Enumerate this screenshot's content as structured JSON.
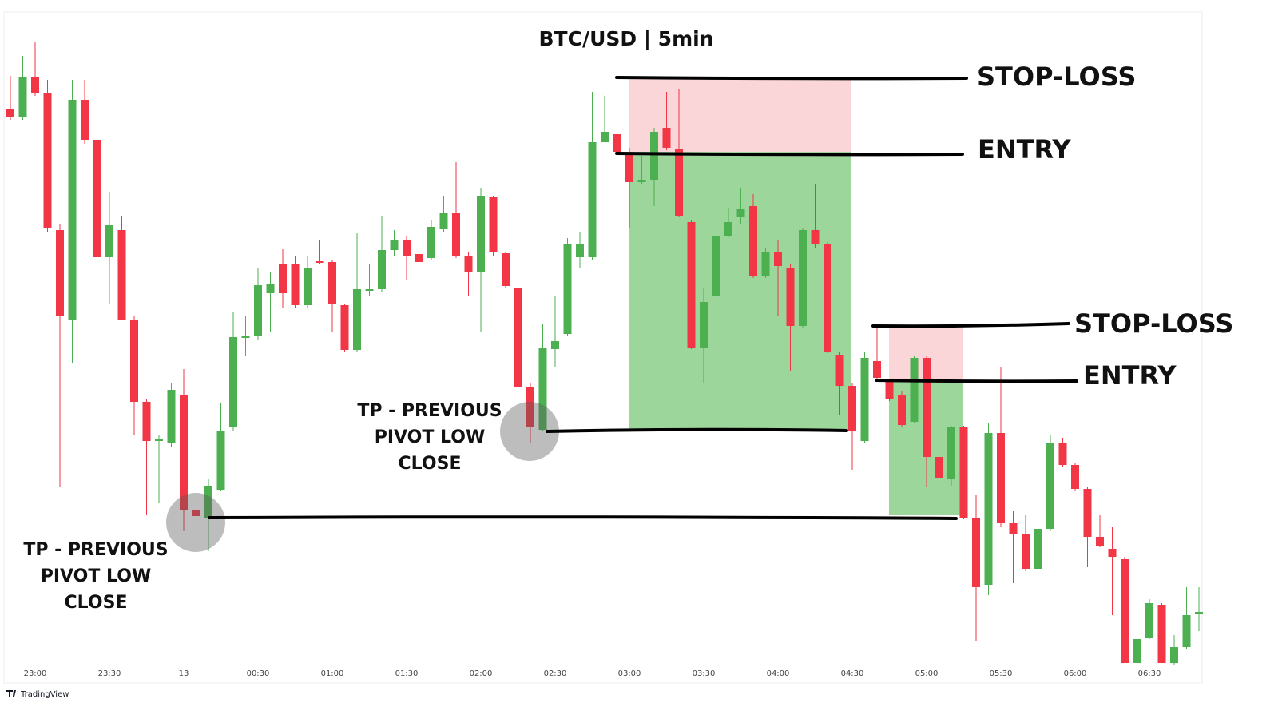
{
  "chart_data": {
    "type": "candlestick",
    "title": "BTC/USD | 5min",
    "categories": [
      null,
      null,
      "23:00",
      null,
      null,
      null,
      null,
      null,
      "23:30",
      null,
      null,
      null,
      null,
      null,
      "13",
      null,
      null,
      null,
      null,
      null,
      "00:30",
      null,
      null,
      null,
      null,
      null,
      "01:00",
      null,
      null,
      null,
      null,
      null,
      "01:30",
      null,
      null,
      null,
      null,
      null,
      "02:00",
      null,
      null,
      null,
      null,
      null,
      "02:30",
      null,
      null,
      null,
      null,
      null,
      "03:00",
      null,
      null,
      null,
      null,
      null,
      "03:30",
      null,
      null,
      null,
      null,
      null,
      "04:00",
      null,
      null,
      null,
      null,
      null,
      "04:30",
      null,
      null,
      null,
      null,
      null,
      "05:00",
      null,
      null,
      null,
      null,
      null,
      "05:30",
      null,
      null,
      null,
      null,
      null,
      "06:00",
      null,
      null,
      null,
      null,
      null,
      "06:30",
      null,
      null,
      null,
      null
    ],
    "open": [
      723,
      714,
      763,
      743,
      572,
      460,
      735,
      685,
      538,
      572,
      460,
      357,
      308,
      305,
      365,
      222,
      212,
      247,
      325,
      437,
      440,
      493,
      530,
      530,
      478,
      533,
      532,
      478,
      422,
      496,
      498,
      547,
      560,
      542,
      537,
      573,
      594,
      540,
      520,
      613,
      543,
      500,
      375,
      322,
      423,
      442,
      538,
      538,
      682,
      692,
      668,
      632,
      635,
      700,
      673,
      582,
      425,
      490,
      565,
      588,
      602,
      515,
      545,
      525,
      452,
      572,
      555,
      416,
      377,
      308,
      408,
      382,
      366,
      332,
      412,
      288,
      260,
      325,
      212,
      128,
      318,
      205,
      192,
      148,
      198,
      305,
      278,
      248,
      188,
      173,
      160,
      30,
      62,
      103,
      30,
      50,
      92
    ],
    "high": [
      765,
      790,
      807,
      760,
      580,
      760,
      760,
      690,
      620,
      590,
      465,
      360,
      315,
      380,
      398,
      240,
      260,
      355,
      470,
      465,
      525,
      520,
      548,
      540,
      540,
      560,
      535,
      480,
      568,
      530,
      590,
      572,
      565,
      560,
      585,
      615,
      657,
      545,
      625,
      615,
      545,
      505,
      380,
      455,
      490,
      562,
      570,
      745,
      740,
      765,
      675,
      665,
      700,
      745,
      748,
      585,
      500,
      570,
      600,
      625,
      617,
      550,
      560,
      530,
      575,
      630,
      557,
      420,
      380,
      420,
      450,
      385,
      370,
      415,
      415,
      290,
      327,
      327,
      240,
      330,
      400,
      220,
      215,
      220,
      315,
      312,
      280,
      250,
      215,
      200,
      163,
      75,
      110,
      105,
      65,
      125,
      125
    ],
    "low": [
      710,
      710,
      740,
      570,
      250,
      405,
      680,
      535,
      480,
      460,
      315,
      215,
      230,
      300,
      195,
      195,
      170,
      245,
      320,
      415,
      435,
      445,
      475,
      475,
      475,
      530,
      445,
      420,
      420,
      490,
      495,
      540,
      510,
      485,
      535,
      570,
      537,
      490,
      445,
      540,
      500,
      372,
      305,
      320,
      400,
      440,
      525,
      535,
      682,
      655,
      575,
      630,
      602,
      672,
      588,
      423,
      380,
      488,
      563,
      580,
      512,
      512,
      465,
      395,
      450,
      550,
      418,
      340,
      272,
      305,
      382,
      358,
      325,
      330,
      250,
      260,
      252,
      210,
      58,
      115,
      200,
      130,
      145,
      145,
      195,
      275,
      245,
      150,
      175,
      90,
      30,
      28,
      60,
      30,
      28,
      47,
      70
    ],
    "close": [
      714,
      763,
      743,
      575,
      465,
      735,
      685,
      538,
      578,
      460,
      357,
      308,
      310,
      372,
      222,
      214,
      252,
      320,
      438,
      440,
      503,
      504,
      493,
      478,
      525,
      531,
      480,
      422,
      498,
      498,
      547,
      560,
      540,
      532,
      576,
      594,
      540,
      520,
      615,
      545,
      502,
      375,
      325,
      425,
      433,
      555,
      555,
      682,
      695,
      670,
      632,
      635,
      695,
      675,
      590,
      425,
      482,
      565,
      582,
      598,
      515,
      545,
      527,
      452,
      572,
      555,
      420,
      377,
      320,
      412,
      387,
      360,
      328,
      412,
      288,
      262,
      325,
      212,
      125,
      318,
      205,
      192,
      148,
      198,
      305,
      278,
      248,
      188,
      177,
      163,
      30,
      60,
      105,
      30,
      50,
      90,
      94
    ],
    "up_color": "#4caf50",
    "down_color": "#f23645",
    "ylim": [
      20,
      845
    ],
    "annotations": {
      "stop_loss_1": "STOP-LOSS",
      "entry_1": "ENTRY",
      "stop_loss_2": "STOP-LOSS",
      "entry_2": "ENTRY",
      "tp_1": [
        "TP - PREVIOUS",
        "PIVOT LOW",
        "CLOSE"
      ],
      "tp_2": [
        "TP - PREVIOUS",
        "PIVOT LOW",
        "CLOSE"
      ]
    },
    "source": "TradingView"
  }
}
